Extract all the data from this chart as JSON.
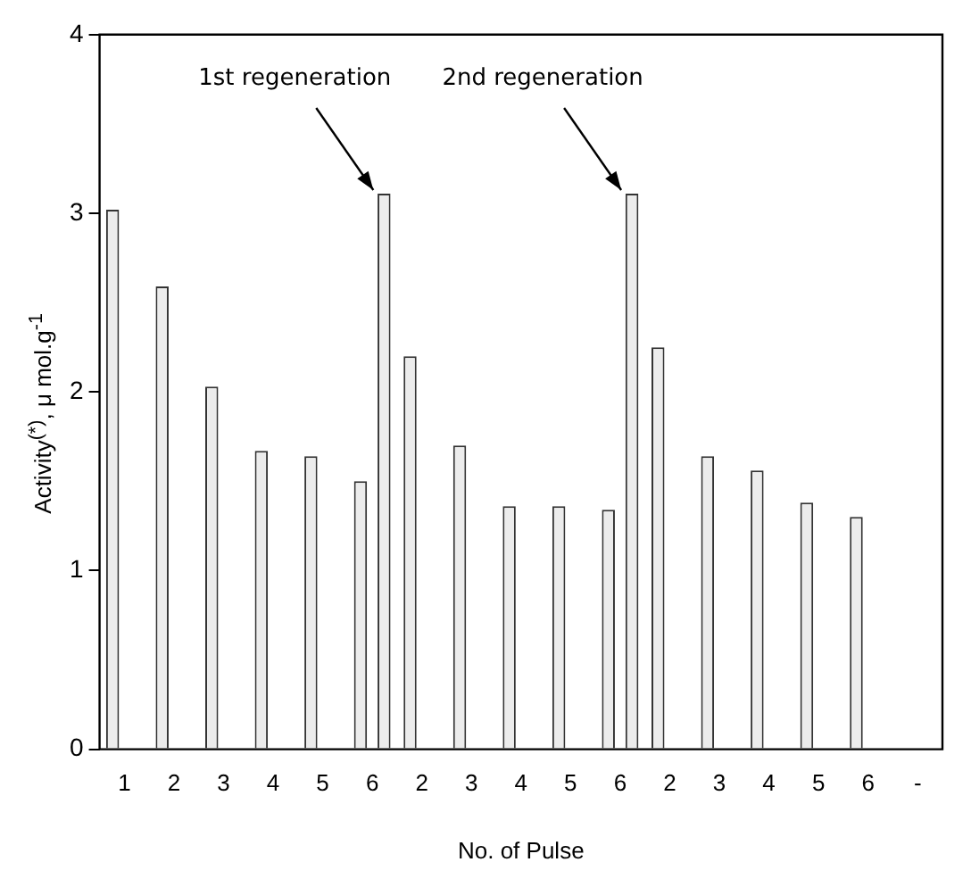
{
  "chart_data": {
    "type": "bar",
    "xlabel": "No. of Pulse",
    "ylabel": "Activity$^{(*)}$,  μ mol.g$^{-1}$",
    "categories": [
      "1",
      "2",
      "3",
      "4",
      "5",
      "6",
      "2",
      "3",
      "4",
      "5",
      "6",
      "2",
      "3",
      "4",
      "5",
      "6",
      "-"
    ],
    "series": [
      {
        "color": "#ececec",
        "values": [
          3.02,
          2.59,
          2.03,
          1.67,
          1.64,
          1.5,
          2.2,
          1.7,
          1.36,
          1.36,
          1.34,
          2.25,
          1.64,
          1.56,
          1.38,
          1.3,
          null
        ]
      },
      {
        "color": "#ececec",
        "values": [
          null,
          null,
          null,
          null,
          null,
          3.11,
          null,
          null,
          null,
          null,
          3.11,
          null,
          null,
          null,
          null,
          null,
          null
        ]
      }
    ],
    "ylim": [
      0,
      4
    ],
    "yticks": [
      0,
      1,
      2,
      3,
      4
    ],
    "grid": false,
    "legend": false,
    "annotations": [
      "1st regeneration",
      "2nd regeneration"
    ]
  }
}
